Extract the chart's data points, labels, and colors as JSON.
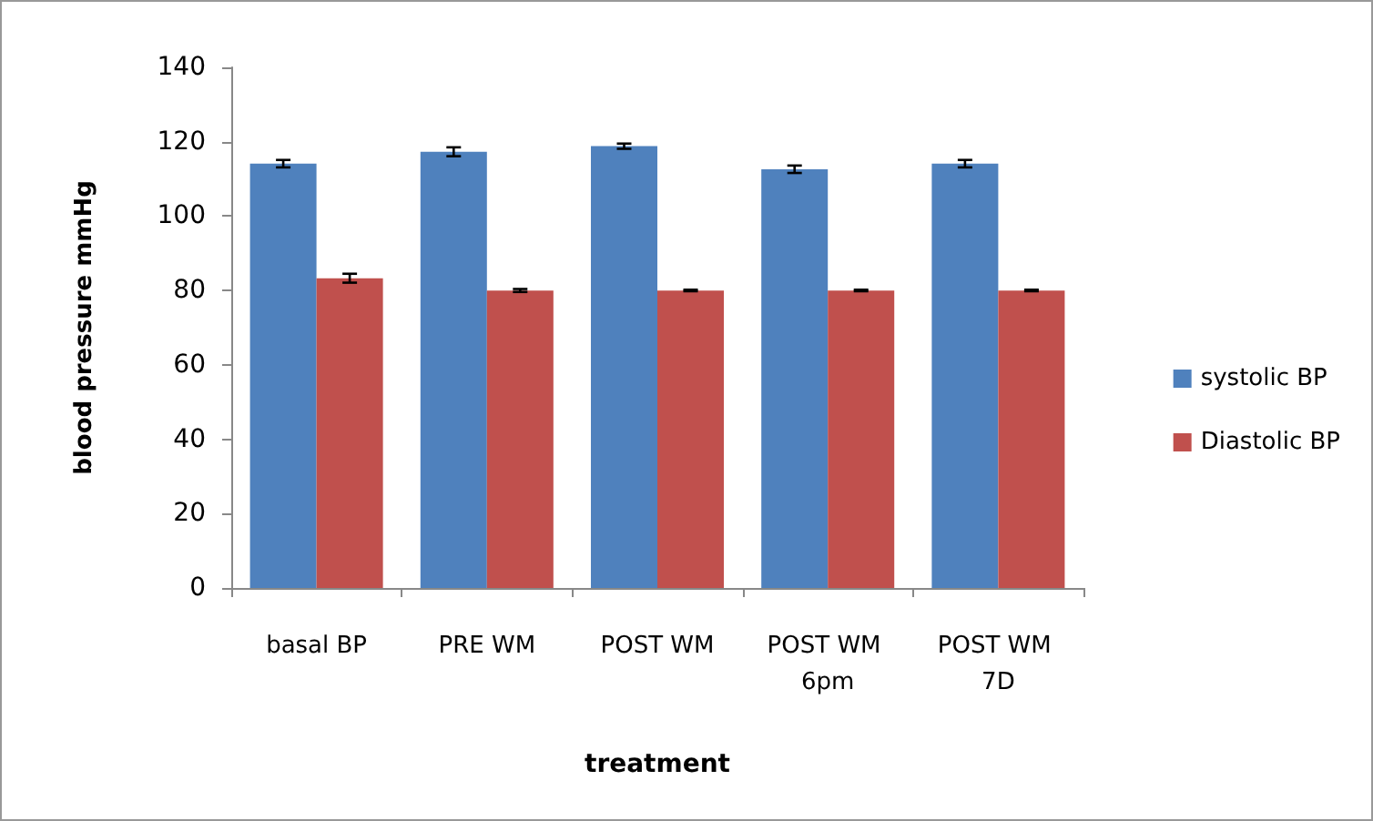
{
  "chart_data": {
    "type": "bar",
    "xlabel": "treatment",
    "ylabel": "blood pressure mmHg",
    "categories": [
      "basal BP",
      "PRE WM",
      "POST WM",
      "POST WM 6pm",
      "POST WM 7D"
    ],
    "series": [
      {
        "name": "systolic BP",
        "color": "#4f81bd",
        "values": [
          114.1,
          117.3,
          118.8,
          112.6,
          114.1
        ],
        "errors": [
          1,
          1.2,
          0.7,
          1,
          1
        ]
      },
      {
        "name": "Diastolic BP",
        "color": "#c0504d",
        "values": [
          83.3,
          80,
          80,
          80,
          80
        ],
        "errors": [
          1.2,
          0.4,
          0.2,
          0.2,
          0.2
        ]
      }
    ],
    "ylim": [
      0,
      140
    ],
    "yticks": [
      0,
      20,
      40,
      60,
      80,
      100,
      120,
      140
    ],
    "grid": false,
    "legend": "right"
  }
}
